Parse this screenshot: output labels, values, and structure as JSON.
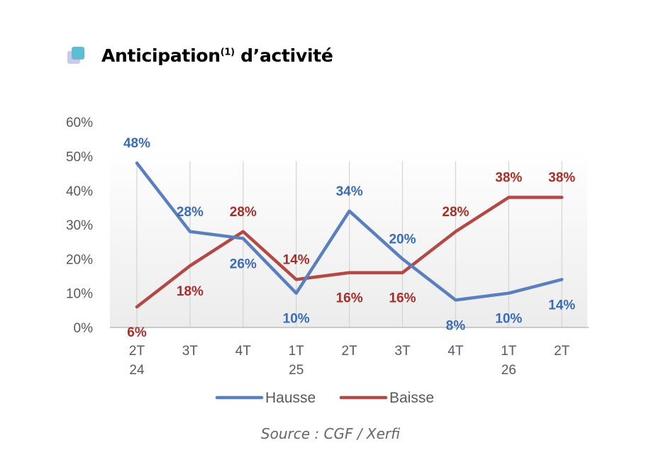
{
  "header": {
    "title_main": "Anticipation",
    "title_sup": "(1)",
    "title_end": " d’activité"
  },
  "source": "Source : CGF / Xerfi",
  "colors": {
    "hausse": "#5a7fbf",
    "baisse": "#b34845",
    "hausse_label": "#3a6bb5",
    "baisse_label": "#a72d28",
    "axis_text": "#595959",
    "grid": "#d4d4d4",
    "icon_front": "#5ebdd0",
    "icon_back": "#c9c9ea"
  },
  "chart_data": {
    "type": "line",
    "title": "Anticipation(1) d’activité",
    "xlabel": "",
    "ylabel": "",
    "ylim": [
      0,
      60
    ],
    "y_unit": "%",
    "yticks": [
      "0%",
      "10%",
      "20%",
      "30%",
      "40%",
      "50%",
      "60%"
    ],
    "categories": [
      "2T 24",
      "3T",
      "4T",
      "1T 25",
      "2T",
      "3T",
      "4T",
      "1T 26",
      "2T"
    ],
    "category_lines": [
      [
        "2T",
        "24"
      ],
      [
        "3T"
      ],
      [
        "4T"
      ],
      [
        "1T",
        "25"
      ],
      [
        "2T"
      ],
      [
        "3T"
      ],
      [
        "4T"
      ],
      [
        "1T",
        "26"
      ],
      [
        "2T"
      ]
    ],
    "series": [
      {
        "name": "Hausse",
        "values": [
          48,
          28,
          26,
          10,
          34,
          20,
          8,
          10,
          14
        ],
        "labels": [
          "48%",
          "28%",
          "26%",
          "10%",
          "34%",
          "20%",
          "8%",
          "10%",
          "14%"
        ],
        "label_pos": [
          "above",
          "above",
          "below",
          "below",
          "above",
          "above",
          "below",
          "below",
          "below"
        ]
      },
      {
        "name": "Baisse",
        "values": [
          6,
          18,
          28,
          14,
          16,
          16,
          28,
          38,
          38
        ],
        "labels": [
          "6%",
          "18%",
          "28%",
          "14%",
          "16%",
          "16%",
          "28%",
          "38%",
          "38%"
        ],
        "label_pos": [
          "below",
          "below",
          "above",
          "above",
          "below",
          "below",
          "above",
          "above",
          "above"
        ]
      }
    ],
    "grid": "vertical",
    "legend": "bottom"
  }
}
